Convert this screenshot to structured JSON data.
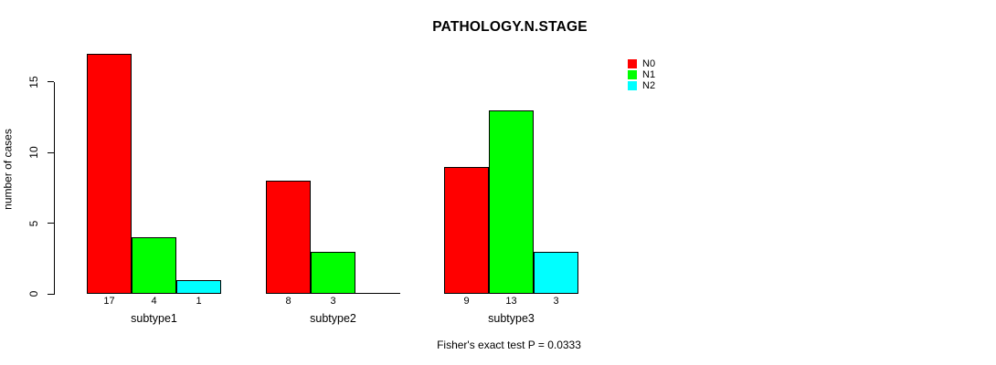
{
  "chart_data": {
    "type": "bar",
    "grouped": true,
    "title": "PATHOLOGY.N.STAGE",
    "xlabel": "",
    "ylabel": "number of cases",
    "categories": [
      "subtype1",
      "subtype2",
      "subtype3"
    ],
    "series": [
      {
        "name": "N0",
        "color": "#ff0000",
        "values": [
          17,
          8,
          9
        ]
      },
      {
        "name": "N1",
        "color": "#00ff00",
        "values": [
          4,
          3,
          13
        ]
      },
      {
        "name": "N2",
        "color": "#00ffff",
        "values": [
          1,
          0,
          3
        ]
      }
    ],
    "bar_value_labels": [
      [
        "17",
        "4",
        "1"
      ],
      [
        "8",
        "3",
        ""
      ],
      [
        "9",
        "13",
        "3"
      ]
    ],
    "yticks": [
      "0",
      "5",
      "10",
      "15"
    ],
    "ylim": [
      0,
      17.5
    ],
    "grid": false,
    "legend_position": "top-right",
    "legend_entries": [
      "N0",
      "N1",
      "N2"
    ],
    "annotation": "Fisher's exact test P = 0.0333"
  }
}
